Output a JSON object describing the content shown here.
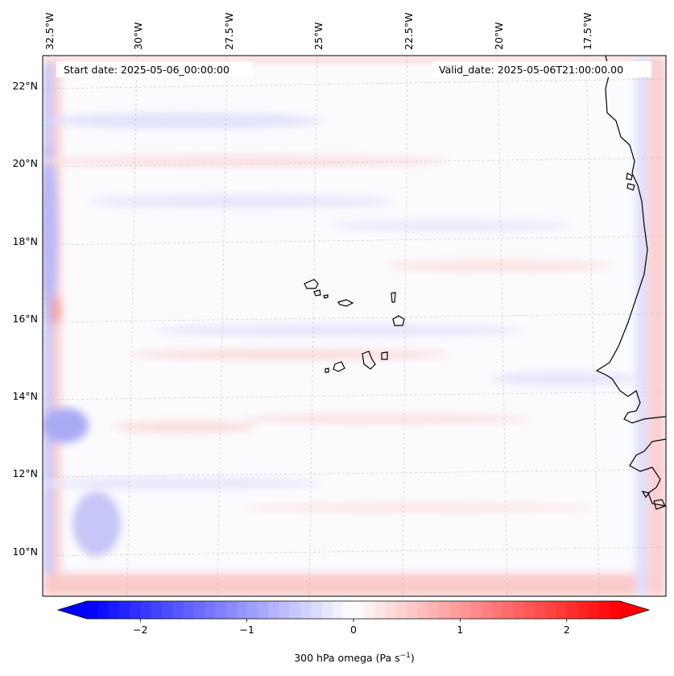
{
  "header": {
    "start_date": "Start date: 2025-05-06_00:00:00",
    "valid_date": "Valid_date: 2025-05-06T21:00:00.00"
  },
  "map": {
    "lon_labels": [
      "32.5°W",
      "30°W",
      "27.5°W",
      "25°W",
      "22.5°W",
      "20°W",
      "17.5°W"
    ],
    "lat_labels": [
      "22°N",
      "20°N",
      "18°N",
      "16°N",
      "14°N",
      "12°N",
      "10°N"
    ]
  },
  "colorbar": {
    "tick_labels": [
      "−2",
      "−1",
      "0",
      "1",
      "2"
    ],
    "tick_values": [
      -2,
      -1,
      0,
      1,
      2
    ],
    "range": [
      -2.5,
      2.5
    ],
    "label_main": "300 hPa omega (Pa s",
    "label_exp": "−1",
    "label_close": ")",
    "low_color": "#0000ff",
    "mid_color": "#ffffff",
    "high_color": "#ff0000"
  }
}
